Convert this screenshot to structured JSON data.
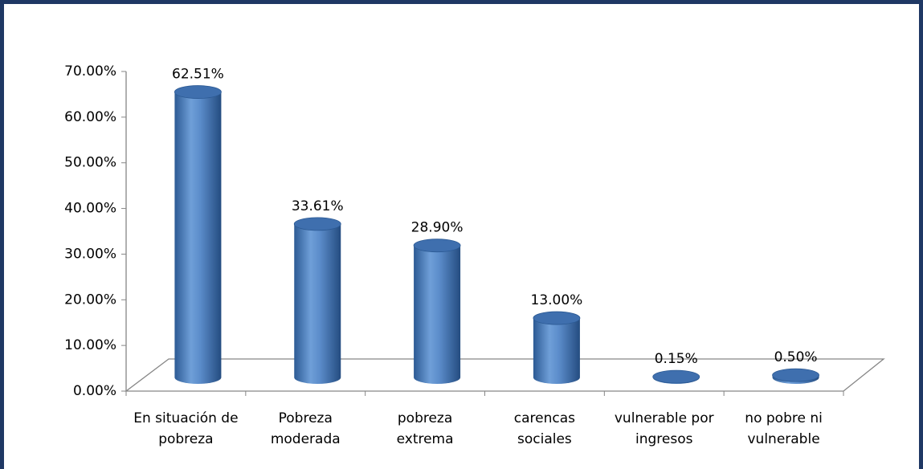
{
  "chart_data": {
    "type": "bar3d",
    "categories": [
      "En situación de pobreza",
      "Pobreza moderada",
      "pobreza extrema",
      "carencas sociales",
      "vulnerable por ingresos",
      "no pobre ni vulnerable"
    ],
    "values": [
      62.51,
      33.61,
      28.9,
      13.0,
      0.15,
      0.5
    ],
    "value_labels": [
      "62.51%",
      "33.61%",
      "28.90%",
      "13.00%",
      "0.15%",
      "0.50%"
    ],
    "color": "#4f81bd",
    "ylim": [
      0,
      70
    ],
    "yticks": [
      {
        "value": 0,
        "label": "0.00%"
      },
      {
        "value": 10,
        "label": "10.00%"
      },
      {
        "value": 20,
        "label": "20.00%"
      },
      {
        "value": 30,
        "label": "30.00%"
      },
      {
        "value": 40,
        "label": "40.00%"
      },
      {
        "value": 50,
        "label": "50.00%"
      },
      {
        "value": 60,
        "label": "60.00%"
      },
      {
        "value": 70,
        "label": "70.00%"
      }
    ]
  }
}
